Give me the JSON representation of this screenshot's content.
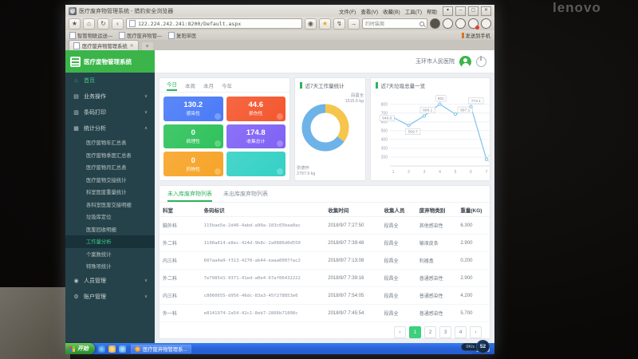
{
  "bezel": {
    "brand": "lenovo"
  },
  "browser": {
    "window_title": "医疗废弃物管理系统 - 猎豹安全浏览器",
    "menus": [
      "文件(F)",
      "查看(V)",
      "收藏(B)",
      "工具(T)",
      "帮助"
    ],
    "address": "122.224.242.241:8200/Default.aspx",
    "search_text": "约时装周",
    "bookmarks": [
      "智管物联运送—",
      "医疗废弃物管—",
      "复阳单医"
    ],
    "send_to_phone": "发送到手机",
    "tab_label": "医疗废弃物管理系统"
  },
  "app": {
    "logo_title": "医疗废物管理系统",
    "hospital": "玉环市人民医院",
    "sidebar": {
      "items": [
        {
          "label": "首页",
          "icon": "home-icon",
          "active": true
        },
        {
          "label": "业务操作",
          "icon": "briefcase-icon",
          "chevron": "down"
        },
        {
          "label": "条码打印",
          "icon": "printer-icon",
          "chevron": "down"
        },
        {
          "label": "统计分析",
          "icon": "chart-icon",
          "chevron": "up",
          "children": [
            {
              "label": "医疗废物年汇总表"
            },
            {
              "label": "医疗废物季度汇总表"
            },
            {
              "label": "医疗废物月汇总表"
            },
            {
              "label": "医疗废物交接统计"
            },
            {
              "label": "科室医废重量统计"
            },
            {
              "label": "各科室医废交接明细"
            },
            {
              "label": "垃圾库定位"
            },
            {
              "label": "医废回收明细"
            },
            {
              "label": "工作量分析",
              "active": true
            },
            {
              "label": "个案数统计"
            },
            {
              "label": "特殊项统计"
            }
          ]
        },
        {
          "label": "人员管理",
          "icon": "users-icon",
          "chevron": "down"
        },
        {
          "label": "账户管理",
          "icon": "gear-icon",
          "chevron": "down"
        }
      ]
    },
    "stats": {
      "tabs": [
        "今日",
        "本周",
        "本月",
        "今年"
      ],
      "active_tab": 0,
      "cards": [
        {
          "value": "130.2",
          "label": "感染性",
          "color": "#4a7bf7"
        },
        {
          "value": "44.6",
          "label": "损伤性",
          "color": "#f4572e"
        },
        {
          "value": "0",
          "label": "病理性",
          "color": "#2fc25b"
        },
        {
          "value": "174.8",
          "label": "收集总计",
          "color": "#8062f5"
        },
        {
          "value": "0",
          "label": "药物性",
          "color": "#f7a428"
        },
        {
          "value": "",
          "label": "",
          "color": "#35d1c5"
        }
      ]
    },
    "donut_panel": {
      "title": "近7天工作量统计",
      "chart_data": {
        "type": "pie",
        "series": [
          {
            "name": "段昌全",
            "value": 1515.5,
            "unit": "kg",
            "color": "#f6c54b"
          },
          {
            "name": "张德怀",
            "value": 2797.9,
            "unit": "kg",
            "color": "#6db3e8"
          }
        ]
      }
    },
    "line_panel": {
      "title": "近7天垃圾总量一览",
      "chart_data": {
        "type": "line",
        "x": [
          "1",
          "2",
          "3",
          "4",
          "5",
          "6",
          "7"
        ],
        "values": [
          649.6,
          559.7,
          668.1,
          801,
          687.1,
          773.1,
          174.8
        ],
        "yticks": [
          200,
          300,
          400,
          500,
          600,
          700,
          800
        ],
        "ylim": [
          100,
          860
        ],
        "line_color": "#7ec2e8"
      }
    },
    "table": {
      "tabs": [
        "未入库废弃物列表",
        "未出库废弃物列表"
      ],
      "active_tab": 0,
      "headers": [
        "科室",
        "条码标识",
        "收集时间",
        "收集人员",
        "废弃物类别",
        "重量(KG)"
      ],
      "rows": [
        [
          "脑外科",
          "115bae5e-2d46-4abd-a90a-183c65baa0ac",
          "2018/9/7 7:27:50",
          "段昌全",
          "其他感染性",
          "6.300"
        ],
        [
          "外二科",
          "1190a614-e8ec-424d-9b8c-2a0886d0d550",
          "2018/9/7 7:39:48",
          "段昌全",
          "输液皮条",
          "2.900"
        ],
        [
          "内三科",
          "607aa4a9-f313-4270-ab44-eaaa0007fac2",
          "2018/9/7 7:13:08",
          "段昌全",
          "利器盒",
          "0.200"
        ],
        [
          "外二科",
          "7e7985d1-9371-41ed-a0e4-67af06432222",
          "2018/9/7 7:39:16",
          "段昌全",
          "普通感染性",
          "2.900"
        ],
        [
          "内三科",
          "c8060655-d956-46dc-83a3-45f278853e6",
          "2018/9/7 7:54:05",
          "段昌全",
          "普通感染性",
          "4.200"
        ],
        [
          "外一科",
          "e8141974-2a54-42c1-8eb7-2866b71808c",
          "2018/9/7 7:45:54",
          "段昌全",
          "普通感染性",
          "5.700"
        ]
      ],
      "pagination": {
        "pages": [
          "1",
          "2",
          "3",
          "4"
        ],
        "active": "1"
      }
    }
  },
  "taskbar": {
    "start_label": "开始",
    "app_label": "医疗废弃物管理系...",
    "net_speed": "0K/s",
    "speed_score": "52"
  }
}
